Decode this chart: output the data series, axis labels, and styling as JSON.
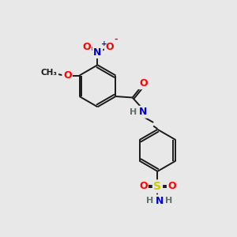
{
  "background_color": "#e8e8e8",
  "bond_color": "#1a1a1a",
  "atom_colors": {
    "O": "#ff0000",
    "N": "#0000cc",
    "S": "#cccc00",
    "C": "#1a1a1a",
    "H": "#607070"
  },
  "figsize": [
    3.0,
    3.0
  ],
  "dpi": 100,
  "lw": 1.4
}
